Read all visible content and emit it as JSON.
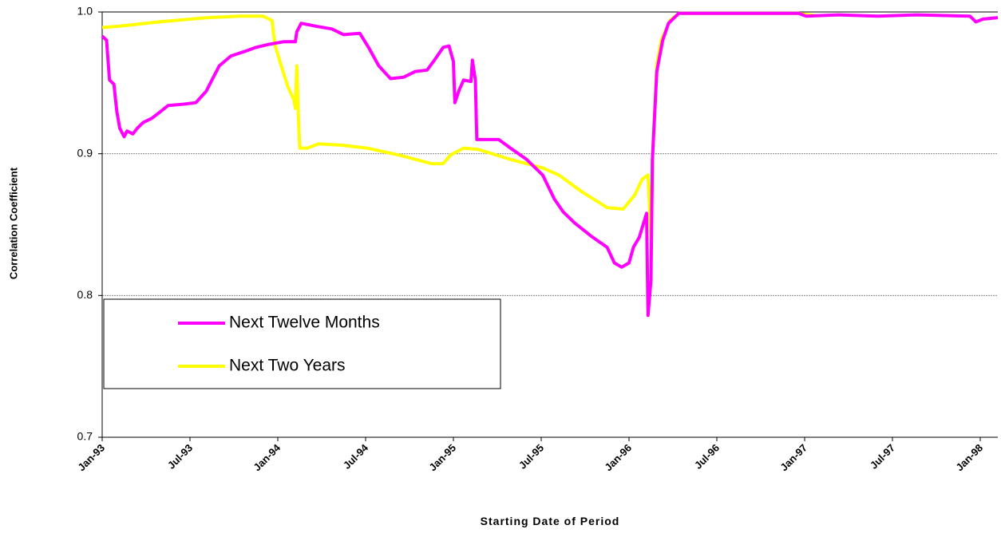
{
  "chart_data": {
    "type": "line",
    "y_label": "Correlation Coefficient",
    "x_label": "Starting Date of Period",
    "xlim": [
      0,
      61.2
    ],
    "xticks": [
      {
        "value": 0,
        "label": "Jan-93"
      },
      {
        "value": 6,
        "label": "Jul-93"
      },
      {
        "value": 12,
        "label": "Jan-94"
      },
      {
        "value": 18,
        "label": "Jul-94"
      },
      {
        "value": 24,
        "label": "Jan-95"
      },
      {
        "value": 30,
        "label": "Jul-95"
      },
      {
        "value": 36,
        "label": "Jan-96"
      },
      {
        "value": 42,
        "label": "Jul-96"
      },
      {
        "value": 48,
        "label": "Jan-97"
      },
      {
        "value": 54,
        "label": "Jul-97"
      },
      {
        "value": 60,
        "label": "Jan-98"
      }
    ],
    "ylim": [
      0.7,
      1.0
    ],
    "yticks": [
      0.7,
      0.8,
      0.9,
      {
        "value": 1.0,
        "label": "1.0"
      }
    ],
    "grid": true,
    "legend_position": "left",
    "series": [
      {
        "name": "Next Twelve Months",
        "color": "#ff00ff",
        "x": [
          0,
          0.3,
          0.4,
          0.5,
          0.8,
          1.0,
          1.2,
          1.5,
          1.7,
          2.1,
          2.4,
          2.8,
          3.4,
          3.9,
          4.5,
          5.6,
          6.4,
          7.1,
          7.5,
          8.0,
          8.8,
          9.7,
          10.5,
          11.3,
          12.4,
          13.2,
          13.3,
          13.6,
          14.6,
          15.7,
          16.5,
          17.6,
          18.2,
          18.9,
          19.7,
          20.6,
          21.4,
          22.2,
          22.7,
          23.3,
          23.7,
          24.0,
          24.1,
          24.4,
          24.7,
          25.2,
          25.3,
          25.5,
          25.6,
          26.3,
          27.1,
          27.9,
          29.0,
          30.1,
          30.9,
          31.5,
          32.3,
          33.4,
          34.5,
          35.0,
          35.5,
          36.0,
          36.3,
          36.7,
          37.2,
          37.3,
          37.5,
          37.6,
          37.9,
          38.3,
          38.7,
          39.4,
          42.1,
          47.6,
          48.1,
          50.3,
          53.0,
          55.7,
          59.3,
          59.7,
          60.2,
          61.2
        ],
        "values": [
          0.983,
          0.98,
          0.966,
          0.952,
          0.949,
          0.93,
          0.918,
          0.912,
          0.916,
          0.914,
          0.918,
          0.922,
          0.925,
          0.929,
          0.934,
          0.935,
          0.936,
          0.944,
          0.952,
          0.962,
          0.969,
          0.972,
          0.975,
          0.977,
          0.979,
          0.979,
          0.986,
          0.992,
          0.99,
          0.988,
          0.984,
          0.985,
          0.975,
          0.962,
          0.953,
          0.954,
          0.958,
          0.959,
          0.966,
          0.975,
          0.976,
          0.965,
          0.936,
          0.945,
          0.952,
          0.951,
          0.966,
          0.952,
          0.91,
          0.91,
          0.91,
          0.904,
          0.896,
          0.885,
          0.868,
          0.859,
          0.851,
          0.842,
          0.834,
          0.823,
          0.82,
          0.823,
          0.834,
          0.841,
          0.858,
          0.786,
          0.811,
          0.896,
          0.958,
          0.98,
          0.992,
          0.999,
          0.999,
          0.999,
          0.997,
          0.998,
          0.997,
          0.998,
          0.997,
          0.993,
          0.995,
          0.996
        ]
      },
      {
        "name": "Next Two Years",
        "color": "#ffff00",
        "x": [
          0,
          1.2,
          3.9,
          7.2,
          9.4,
          11.0,
          11.6,
          11.8,
          12.2,
          12.7,
          13.1,
          13.2,
          13.3,
          13.4,
          13.5,
          14.0,
          14.8,
          16.4,
          18.1,
          20.3,
          22.5,
          23.3,
          23.8,
          24.7,
          25.7,
          27.9,
          30.1,
          31.2,
          32.8,
          34.5,
          35.6,
          36.4,
          36.9,
          37.3,
          37.5,
          37.6,
          37.9,
          38.2,
          38.8,
          39.4,
          47.6,
          49.0
        ],
        "values": [
          0.989,
          0.99,
          0.993,
          0.996,
          0.997,
          0.997,
          0.994,
          0.977,
          0.963,
          0.947,
          0.938,
          0.932,
          0.962,
          0.927,
          0.904,
          0.904,
          0.907,
          0.906,
          0.904,
          0.899,
          0.893,
          0.893,
          0.899,
          0.904,
          0.903,
          0.896,
          0.89,
          0.885,
          0.873,
          0.862,
          0.861,
          0.871,
          0.882,
          0.885,
          0.84,
          0.896,
          0.963,
          0.98,
          0.994,
          0.999,
          0.999,
          0.997
        ]
      }
    ]
  }
}
